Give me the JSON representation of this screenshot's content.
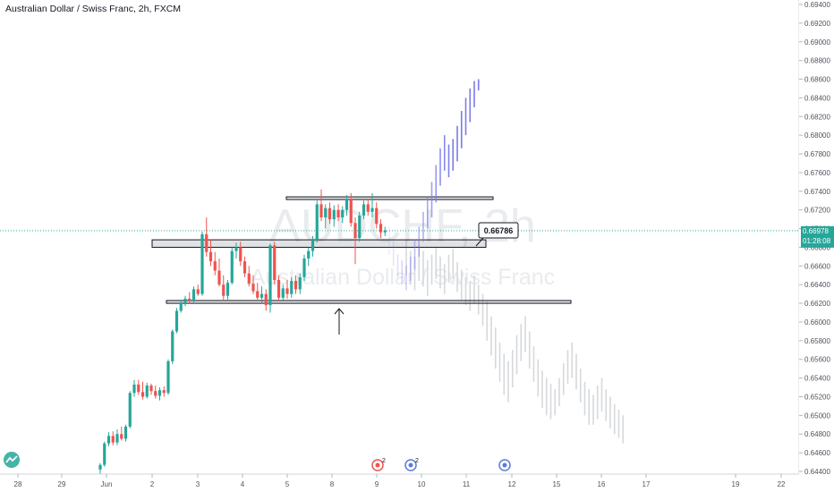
{
  "header": {
    "title": "Australian Dollar / Swiss Franc, 2h, FXCM"
  },
  "watermark": {
    "symbol": "AUDCHF, 2h",
    "name": "Australian Dollar / Swiss Franc"
  },
  "price_axis": {
    "last_price": "0.66978",
    "countdown": "01:28:08",
    "last_color": "#26a69a"
  },
  "callout": {
    "label": "0.66786"
  },
  "chart_data": {
    "type": "candlestick",
    "title": "Australian Dollar / Swiss Franc, 2h, FXCM",
    "x_tick_labels": [
      "28",
      "29",
      "Jun",
      "2",
      "3",
      "4",
      "5",
      "8",
      "9",
      "10",
      "11",
      "12",
      "15",
      "16",
      "17",
      "19",
      "22"
    ],
    "y_tick_labels": [
      "0.69400",
      "0.69200",
      "0.69000",
      "0.68800",
      "0.68600",
      "0.68400",
      "0.68200",
      "0.68000",
      "0.67800",
      "0.67600",
      "0.67400",
      "0.67200",
      "0.67000",
      "0.66800",
      "0.66600",
      "0.66400",
      "0.66200",
      "0.66000",
      "0.65800",
      "0.65600",
      "0.65400",
      "0.65200",
      "0.65000",
      "0.64800",
      "0.64600",
      "0.64400"
    ],
    "ylim": [
      0.6439,
      0.6945
    ],
    "grid": false,
    "up_color": "#26a69a",
    "down_color": "#ef5350",
    "projection_color": "#7b7bea",
    "ghost_color": "#d6d8db",
    "candles": [
      {
        "o": 0.6442,
        "h": 0.6449,
        "l": 0.6437,
        "c": 0.6447
      },
      {
        "o": 0.6447,
        "h": 0.6472,
        "l": 0.6445,
        "c": 0.647
      },
      {
        "o": 0.647,
        "h": 0.6482,
        "l": 0.6467,
        "c": 0.6478
      },
      {
        "o": 0.6478,
        "h": 0.6483,
        "l": 0.6468,
        "c": 0.6471
      },
      {
        "o": 0.6471,
        "h": 0.6485,
        "l": 0.6468,
        "c": 0.648
      },
      {
        "o": 0.648,
        "h": 0.6488,
        "l": 0.6473,
        "c": 0.6475
      },
      {
        "o": 0.6475,
        "h": 0.649,
        "l": 0.6472,
        "c": 0.6488
      },
      {
        "o": 0.6488,
        "h": 0.6526,
        "l": 0.6486,
        "c": 0.6524
      },
      {
        "o": 0.6524,
        "h": 0.6538,
        "l": 0.652,
        "c": 0.6533
      },
      {
        "o": 0.6533,
        "h": 0.6538,
        "l": 0.6522,
        "c": 0.6525
      },
      {
        "o": 0.6525,
        "h": 0.6536,
        "l": 0.6517,
        "c": 0.652
      },
      {
        "o": 0.652,
        "h": 0.6535,
        "l": 0.6518,
        "c": 0.6532
      },
      {
        "o": 0.6532,
        "h": 0.6534,
        "l": 0.6522,
        "c": 0.6526
      },
      {
        "o": 0.6526,
        "h": 0.6532,
        "l": 0.6518,
        "c": 0.6521
      },
      {
        "o": 0.6521,
        "h": 0.653,
        "l": 0.6516,
        "c": 0.6527
      },
      {
        "o": 0.6527,
        "h": 0.6531,
        "l": 0.652,
        "c": 0.6524
      },
      {
        "o": 0.6524,
        "h": 0.656,
        "l": 0.6522,
        "c": 0.6558
      },
      {
        "o": 0.6558,
        "h": 0.6592,
        "l": 0.6555,
        "c": 0.659
      },
      {
        "o": 0.659,
        "h": 0.6615,
        "l": 0.6588,
        "c": 0.6612
      },
      {
        "o": 0.6612,
        "h": 0.6624,
        "l": 0.661,
        "c": 0.6621
      },
      {
        "o": 0.6621,
        "h": 0.6628,
        "l": 0.6617,
        "c": 0.6625
      },
      {
        "o": 0.6625,
        "h": 0.6632,
        "l": 0.662,
        "c": 0.6623
      },
      {
        "o": 0.6623,
        "h": 0.6638,
        "l": 0.6621,
        "c": 0.6635
      },
      {
        "o": 0.6635,
        "h": 0.664,
        "l": 0.6628,
        "c": 0.663
      },
      {
        "o": 0.663,
        "h": 0.6697,
        "l": 0.6628,
        "c": 0.6694
      },
      {
        "o": 0.6694,
        "h": 0.6712,
        "l": 0.667,
        "c": 0.6675
      },
      {
        "o": 0.6675,
        "h": 0.6688,
        "l": 0.666,
        "c": 0.6665
      },
      {
        "o": 0.6665,
        "h": 0.6675,
        "l": 0.665,
        "c": 0.6655
      },
      {
        "o": 0.6655,
        "h": 0.6668,
        "l": 0.6638,
        "c": 0.664
      },
      {
        "o": 0.664,
        "h": 0.665,
        "l": 0.6622,
        "c": 0.6628
      },
      {
        "o": 0.6628,
        "h": 0.6645,
        "l": 0.6624,
        "c": 0.6642
      },
      {
        "o": 0.6642,
        "h": 0.668,
        "l": 0.664,
        "c": 0.6676
      },
      {
        "o": 0.6676,
        "h": 0.6685,
        "l": 0.6668,
        "c": 0.668
      },
      {
        "o": 0.668,
        "h": 0.6686,
        "l": 0.666,
        "c": 0.6665
      },
      {
        "o": 0.6665,
        "h": 0.667,
        "l": 0.6648,
        "c": 0.6652
      },
      {
        "o": 0.6652,
        "h": 0.666,
        "l": 0.6638,
        "c": 0.6641
      },
      {
        "o": 0.6641,
        "h": 0.665,
        "l": 0.663,
        "c": 0.6633
      },
      {
        "o": 0.6633,
        "h": 0.6642,
        "l": 0.6624,
        "c": 0.6626
      },
      {
        "o": 0.6626,
        "h": 0.6638,
        "l": 0.662,
        "c": 0.663
      },
      {
        "o": 0.663,
        "h": 0.6635,
        "l": 0.6612,
        "c": 0.6618
      },
      {
        "o": 0.6618,
        "h": 0.6684,
        "l": 0.661,
        "c": 0.6682
      },
      {
        "o": 0.6682,
        "h": 0.6686,
        "l": 0.664,
        "c": 0.6645
      },
      {
        "o": 0.6645,
        "h": 0.665,
        "l": 0.6622,
        "c": 0.6626
      },
      {
        "o": 0.6626,
        "h": 0.664,
        "l": 0.6622,
        "c": 0.6636
      },
      {
        "o": 0.6636,
        "h": 0.6645,
        "l": 0.6625,
        "c": 0.663
      },
      {
        "o": 0.663,
        "h": 0.6648,
        "l": 0.6626,
        "c": 0.6644
      },
      {
        "o": 0.6644,
        "h": 0.665,
        "l": 0.663,
        "c": 0.6635
      },
      {
        "o": 0.6635,
        "h": 0.6652,
        "l": 0.663,
        "c": 0.6648
      },
      {
        "o": 0.6648,
        "h": 0.6672,
        "l": 0.6644,
        "c": 0.6668
      },
      {
        "o": 0.6668,
        "h": 0.668,
        "l": 0.666,
        "c": 0.6676
      },
      {
        "o": 0.6676,
        "h": 0.6692,
        "l": 0.667,
        "c": 0.6688
      },
      {
        "o": 0.6688,
        "h": 0.673,
        "l": 0.6685,
        "c": 0.6726
      },
      {
        "o": 0.6726,
        "h": 0.6742,
        "l": 0.6708,
        "c": 0.6712
      },
      {
        "o": 0.6712,
        "h": 0.6726,
        "l": 0.67,
        "c": 0.6722
      },
      {
        "o": 0.6722,
        "h": 0.6728,
        "l": 0.6705,
        "c": 0.671
      },
      {
        "o": 0.671,
        "h": 0.6725,
        "l": 0.6702,
        "c": 0.672
      },
      {
        "o": 0.672,
        "h": 0.6726,
        "l": 0.6708,
        "c": 0.6712
      },
      {
        "o": 0.6712,
        "h": 0.6724,
        "l": 0.6706,
        "c": 0.672
      },
      {
        "o": 0.672,
        "h": 0.6736,
        "l": 0.6714,
        "c": 0.6732
      },
      {
        "o": 0.6732,
        "h": 0.6738,
        "l": 0.6702,
        "c": 0.6706
      },
      {
        "o": 0.6706,
        "h": 0.6712,
        "l": 0.6662,
        "c": 0.669
      },
      {
        "o": 0.669,
        "h": 0.6718,
        "l": 0.6686,
        "c": 0.6714
      },
      {
        "o": 0.6714,
        "h": 0.673,
        "l": 0.671,
        "c": 0.6726
      },
      {
        "o": 0.6726,
        "h": 0.6732,
        "l": 0.6714,
        "c": 0.6718
      },
      {
        "o": 0.6718,
        "h": 0.6738,
        "l": 0.6712,
        "c": 0.6722
      },
      {
        "o": 0.6722,
        "h": 0.6728,
        "l": 0.67,
        "c": 0.6705
      },
      {
        "o": 0.6705,
        "h": 0.671,
        "l": 0.669,
        "c": 0.6696
      },
      {
        "o": 0.6696,
        "h": 0.6702,
        "l": 0.6692,
        "c": 0.6698
      }
    ],
    "projection": {
      "start_index": 68,
      "bars": [
        {
          "h": 0.6702,
          "l": 0.6672
        },
        {
          "h": 0.6688,
          "l": 0.666
        },
        {
          "h": 0.6672,
          "l": 0.6648
        },
        {
          "h": 0.6666,
          "l": 0.664
        },
        {
          "h": 0.666,
          "l": 0.6634
        },
        {
          "h": 0.667,
          "l": 0.6644
        },
        {
          "h": 0.6688,
          "l": 0.6656
        },
        {
          "h": 0.6702,
          "l": 0.667
        },
        {
          "h": 0.6718,
          "l": 0.6686
        },
        {
          "h": 0.6734,
          "l": 0.67
        },
        {
          "h": 0.675,
          "l": 0.6712
        },
        {
          "h": 0.6768,
          "l": 0.6728
        },
        {
          "h": 0.6786,
          "l": 0.6746
        },
        {
          "h": 0.68,
          "l": 0.6762
        },
        {
          "h": 0.679,
          "l": 0.6755
        },
        {
          "h": 0.6796,
          "l": 0.6762
        },
        {
          "h": 0.681,
          "l": 0.6772
        },
        {
          "h": 0.6826,
          "l": 0.6786
        },
        {
          "h": 0.684,
          "l": 0.68
        },
        {
          "h": 0.685,
          "l": 0.6814
        },
        {
          "h": 0.6858,
          "l": 0.683
        },
        {
          "h": 0.686,
          "l": 0.6848
        }
      ]
    },
    "ghost": {
      "start_index": 72,
      "bars": [
        {
          "h": 0.6688,
          "l": 0.665
        },
        {
          "h": 0.6676,
          "l": 0.664
        },
        {
          "h": 0.667,
          "l": 0.6634
        },
        {
          "h": 0.6682,
          "l": 0.6644
        },
        {
          "h": 0.6676,
          "l": 0.6638
        },
        {
          "h": 0.6666,
          "l": 0.6628
        },
        {
          "h": 0.6672,
          "l": 0.664
        },
        {
          "h": 0.668,
          "l": 0.6646
        },
        {
          "h": 0.667,
          "l": 0.6636
        },
        {
          "h": 0.6662,
          "l": 0.663
        },
        {
          "h": 0.6672,
          "l": 0.6642
        },
        {
          "h": 0.6678,
          "l": 0.6646
        },
        {
          "h": 0.6664,
          "l": 0.6632
        },
        {
          "h": 0.6656,
          "l": 0.6624
        },
        {
          "h": 0.6648,
          "l": 0.6618
        },
        {
          "h": 0.6644,
          "l": 0.6612
        },
        {
          "h": 0.665,
          "l": 0.662
        },
        {
          "h": 0.664,
          "l": 0.6608
        },
        {
          "h": 0.663,
          "l": 0.6596
        },
        {
          "h": 0.6622,
          "l": 0.658
        },
        {
          "h": 0.6606,
          "l": 0.6564
        },
        {
          "h": 0.6594,
          "l": 0.655
        },
        {
          "h": 0.6578,
          "l": 0.6536
        },
        {
          "h": 0.6566,
          "l": 0.6522
        },
        {
          "h": 0.6558,
          "l": 0.6514
        },
        {
          "h": 0.657,
          "l": 0.653
        },
        {
          "h": 0.6586,
          "l": 0.6544
        },
        {
          "h": 0.6598,
          "l": 0.6558
        },
        {
          "h": 0.6606,
          "l": 0.6568
        },
        {
          "h": 0.659,
          "l": 0.655
        },
        {
          "h": 0.6574,
          "l": 0.6536
        },
        {
          "h": 0.656,
          "l": 0.652
        },
        {
          "h": 0.6548,
          "l": 0.6508
        },
        {
          "h": 0.654,
          "l": 0.65
        },
        {
          "h": 0.6534,
          "l": 0.6496
        },
        {
          "h": 0.6528,
          "l": 0.65
        },
        {
          "h": 0.654,
          "l": 0.651
        },
        {
          "h": 0.6556,
          "l": 0.6522
        },
        {
          "h": 0.657,
          "l": 0.6534
        },
        {
          "h": 0.6578,
          "l": 0.654
        },
        {
          "h": 0.6566,
          "l": 0.6528
        },
        {
          "h": 0.655,
          "l": 0.6514
        },
        {
          "h": 0.6536,
          "l": 0.65
        },
        {
          "h": 0.6528,
          "l": 0.649
        },
        {
          "h": 0.6522,
          "l": 0.649
        },
        {
          "h": 0.6532,
          "l": 0.6496
        },
        {
          "h": 0.654,
          "l": 0.6504
        },
        {
          "h": 0.6528,
          "l": 0.6494
        },
        {
          "h": 0.652,
          "l": 0.6486
        },
        {
          "h": 0.6512,
          "l": 0.648
        },
        {
          "h": 0.6506,
          "l": 0.6476
        },
        {
          "h": 0.65,
          "l": 0.647
        }
      ]
    },
    "zones": [
      {
        "x1": 170,
        "x2": 543,
        "y1": 0.6688,
        "y2": 0.668
      },
      {
        "x1": 320,
        "x2": 551,
        "y1": 0.6734,
        "y2": 0.6732
      },
      {
        "x1": 186,
        "x2": 638,
        "y1": 0.6623,
        "y2": 0.662
      }
    ],
    "last_price_value": 0.66978
  },
  "event_markers": [
    {
      "label": "2"
    },
    {
      "label": "2"
    },
    {
      "label": ""
    }
  ]
}
